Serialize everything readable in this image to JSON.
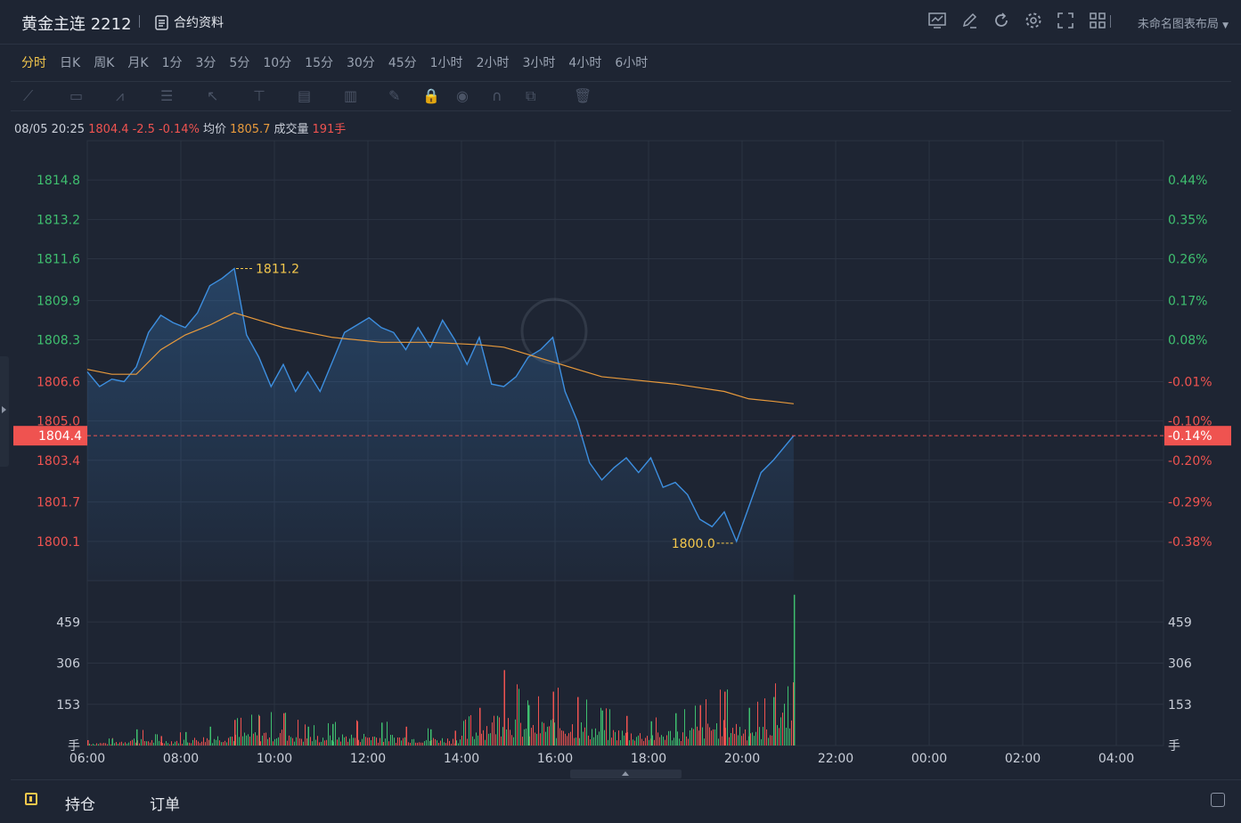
{
  "header": {
    "title": "黄金主连 2212",
    "doc_label": "合约资料",
    "layout_label": "未命名图表布局",
    "icons": [
      "chart-icon",
      "edit-icon",
      "refresh-icon",
      "gear-icon",
      "fullscreen-icon",
      "grid-icon"
    ]
  },
  "periods": [
    "分时",
    "日K",
    "周K",
    "月K",
    "1分",
    "3分",
    "5分",
    "10分",
    "15分",
    "30分",
    "45分",
    "1小时",
    "2小时",
    "3小时",
    "4小时",
    "6小时"
  ],
  "active_period": "分时",
  "drawing_tools": [
    "line-tool-icon",
    "rect-tool-icon",
    "pattern-tool-icon",
    "fib-tool-icon",
    "arrow-tool-icon",
    "measure-tool-icon",
    "text-tool-icon",
    "bar-tool-icon",
    "brush-icon",
    "lock-icon",
    "eye-icon",
    "magnet-icon",
    "clone-icon",
    "trash-icon"
  ],
  "info": {
    "datetime": "08/05 20:25",
    "price": "1804.4",
    "change": "-2.5",
    "change_pct": "-0.14%",
    "avg_label": "均价",
    "avg_value": "1805.7",
    "volume_label": "成交量",
    "volume_value": "191手"
  },
  "bottom": {
    "tab1": "持仓",
    "tab2": "订单"
  },
  "colors": {
    "up": "#3fbf6f",
    "down": "#ef5350",
    "price_line": "#3d8fe0",
    "avg_line": "#e89a3c",
    "accent": "#f5c84c"
  },
  "chart_data": {
    "type": "line",
    "price_axis": {
      "ticks": [
        1814.8,
        1813.2,
        1811.6,
        1809.9,
        1808.3,
        1806.6,
        1805.0,
        1803.4,
        1801.7,
        1800.1
      ],
      "ylim": [
        1798.5,
        1816.4
      ],
      "prev_close": 1806.9
    },
    "pct_axis": {
      "ticks": [
        "0.44%",
        "0.35%",
        "0.26%",
        "0.17%",
        "0.08%",
        "-0.01%",
        "-0.10%",
        "-0.20%",
        "-0.29%",
        "-0.38%"
      ]
    },
    "x_ticks": [
      "06:00",
      "08:00",
      "10:00",
      "12:00",
      "14:00",
      "16:00",
      "18:00",
      "20:00",
      "22:00",
      "00:00",
      "02:00",
      "04:00"
    ],
    "current_price_label": "1804.4",
    "current_pct_label": "-0.14%",
    "high_label": "1811.2",
    "low_label": "1800.0",
    "volume_axis": {
      "ticks": [
        459,
        306,
        153
      ],
      "unit": "手",
      "ylim": [
        0,
        612
      ]
    },
    "series": [
      {
        "key": "price",
        "x": [
          "06:00",
          "06:15",
          "06:30",
          "06:45",
          "07:00",
          "07:15",
          "07:30",
          "07:45",
          "08:00",
          "08:15",
          "08:30",
          "08:45",
          "09:00",
          "09:15",
          "09:30",
          "09:45",
          "10:00",
          "10:15",
          "10:30",
          "10:45",
          "11:00",
          "11:15",
          "11:30",
          "11:45",
          "12:00",
          "12:15",
          "12:30",
          "12:45",
          "13:00",
          "13:15",
          "13:30",
          "13:45",
          "14:00",
          "14:15",
          "14:30",
          "14:45",
          "15:00",
          "15:15",
          "15:30",
          "15:45",
          "16:00",
          "16:15",
          "16:30",
          "16:45",
          "17:00",
          "17:15",
          "17:30",
          "17:45",
          "18:00",
          "18:15",
          "18:30",
          "18:45",
          "19:00",
          "19:15",
          "19:30",
          "19:45",
          "20:00",
          "20:15",
          "20:25"
        ],
        "values": [
          1807.0,
          1806.4,
          1806.7,
          1806.6,
          1807.2,
          1808.6,
          1809.3,
          1809.0,
          1808.8,
          1809.4,
          1810.5,
          1810.8,
          1811.2,
          1808.5,
          1807.6,
          1806.4,
          1807.3,
          1806.2,
          1807.0,
          1806.2,
          1807.4,
          1808.6,
          1808.9,
          1809.2,
          1808.8,
          1808.6,
          1807.9,
          1808.8,
          1808.0,
          1809.1,
          1808.3,
          1807.3,
          1808.4,
          1806.5,
          1806.4,
          1806.8,
          1807.6,
          1807.9,
          1808.4,
          1806.2,
          1805.0,
          1803.3,
          1802.6,
          1803.1,
          1803.5,
          1802.9,
          1803.5,
          1802.3,
          1802.5,
          1802.0,
          1801.0,
          1800.7,
          1801.3,
          1800.1,
          1801.5,
          1802.9,
          1803.4,
          1804.0,
          1804.4
        ]
      },
      {
        "key": "avg",
        "x": [
          "06:00",
          "06:30",
          "07:00",
          "07:30",
          "08:00",
          "08:30",
          "09:00",
          "09:30",
          "10:00",
          "11:00",
          "12:00",
          "13:00",
          "14:00",
          "14:30",
          "15:00",
          "16:00",
          "16:30",
          "17:00",
          "18:00",
          "19:00",
          "19:30",
          "20:00",
          "20:25"
        ],
        "values": [
          1807.1,
          1806.9,
          1806.9,
          1807.9,
          1808.5,
          1808.9,
          1809.4,
          1809.1,
          1808.8,
          1808.4,
          1808.2,
          1808.2,
          1808.1,
          1808.0,
          1807.7,
          1807.1,
          1806.8,
          1806.7,
          1806.5,
          1806.2,
          1805.9,
          1805.8,
          1805.7
        ]
      }
    ],
    "volume": {
      "x": [
        "06:00",
        "06:30",
        "07:00",
        "07:30",
        "08:00",
        "08:30",
        "09:00",
        "09:30",
        "10:00",
        "10:30",
        "11:00",
        "11:30",
        "12:00",
        "12:30",
        "13:00",
        "13:30",
        "14:00",
        "14:30",
        "15:00",
        "15:30",
        "16:00",
        "16:30",
        "17:00",
        "17:30",
        "18:00",
        "18:30",
        "19:00",
        "19:30",
        "20:00",
        "20:25"
      ],
      "values": [
        20,
        25,
        60,
        35,
        50,
        70,
        95,
        110,
        120,
        70,
        80,
        90,
        85,
        70,
        60,
        55,
        140,
        280,
        150,
        200,
        180,
        130,
        110,
        90,
        120,
        150,
        200,
        140,
        180,
        560
      ],
      "colors": [
        "down",
        "up",
        "up",
        "down",
        "up",
        "up",
        "down",
        "down",
        "down",
        "up",
        "up",
        "down",
        "up",
        "down",
        "up",
        "down",
        "down",
        "down",
        "up",
        "down",
        "down",
        "up",
        "down",
        "up",
        "up",
        "down",
        "down",
        "up",
        "up",
        "up"
      ]
    }
  }
}
